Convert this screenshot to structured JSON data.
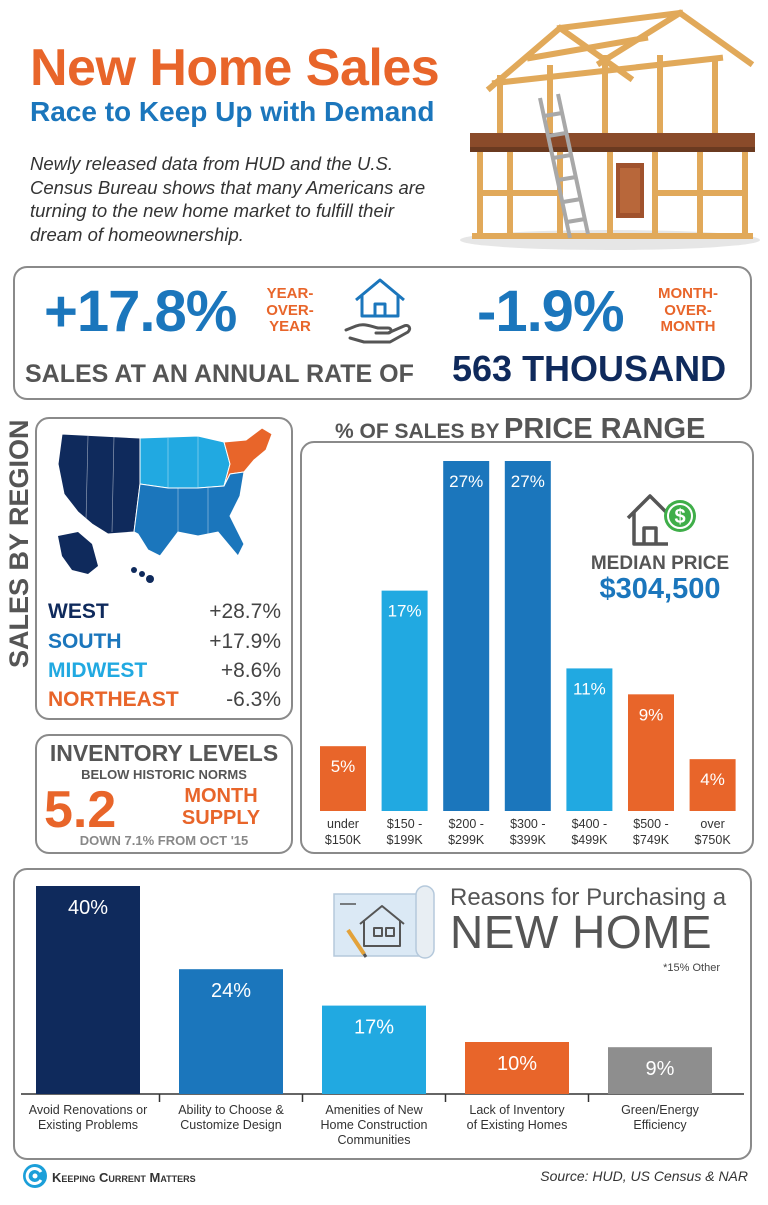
{
  "header": {
    "title": "New Home Sales",
    "subtitle": "Race to Keep Up with Demand",
    "intro": "Newly released data from HUD and the U.S. Census Bureau shows that many Americans are turning to the new home market to fulfill their dream of homeownership."
  },
  "sales_rate": {
    "yoy_value": "+17.8%",
    "yoy_caption_1": "YEAR-",
    "yoy_caption_2": "OVER-",
    "yoy_caption_3": "YEAR",
    "mom_value": "-1.9%",
    "mom_caption_1": "MONTH-",
    "mom_caption_2": "OVER-",
    "mom_caption_3": "MONTH",
    "rate_text": "SALES AT AN ANNUAL RATE OF",
    "rate_value": "563 THOUSAND"
  },
  "regions": {
    "heading": "SALES BY REGION",
    "items": [
      {
        "name": "WEST",
        "value": "+28.7%",
        "color": "#0f2a5c"
      },
      {
        "name": "SOUTH",
        "value": "+17.9%",
        "color": "#1b76bc"
      },
      {
        "name": "MIDWEST",
        "value": "+8.6%",
        "color": "#21a9e1"
      },
      {
        "name": "NORTHEAST",
        "value": "-6.3%",
        "color": "#e8652a"
      }
    ]
  },
  "inventory": {
    "title": "INVENTORY LEVELS",
    "subtitle": "BELOW HISTORIC NORMS",
    "value": "5.2",
    "caption_1": "MONTH",
    "caption_2": "SUPPLY",
    "note": "DOWN 7.1% FROM OCT '15"
  },
  "price": {
    "heading_a": "% OF SALES BY",
    "heading_b": "PRICE RANGE",
    "median_label": "MEDIAN PRICE",
    "median_value": "$304,500"
  },
  "reasons": {
    "title_1": "Reasons for Purchasing a",
    "title_2": "NEW HOME",
    "note": "*15% Other"
  },
  "footer": {
    "logo": "Keeping Current Matters",
    "source": "Source: HUD, US Census & NAR"
  },
  "colors": {
    "orange": "#e8652a",
    "blue": "#1b76bc",
    "light_blue": "#21a9e1",
    "navy": "#0f2a5c",
    "gray": "#8e8e8e"
  },
  "chart_data": [
    {
      "type": "bar",
      "title": "% OF SALES BY PRICE RANGE",
      "categories": [
        [
          "under",
          "$150K"
        ],
        [
          "$150 -",
          "$199K"
        ],
        [
          "$200 -",
          "$299K"
        ],
        [
          "$300 -",
          "$399K"
        ],
        [
          "$400 -",
          "$499K"
        ],
        [
          "$500 -",
          "$749K"
        ],
        [
          "over",
          "$750K"
        ]
      ],
      "values": [
        5,
        17,
        27,
        27,
        11,
        9,
        4
      ],
      "labels": [
        "5%",
        "17%",
        "27%",
        "27%",
        "11%",
        "9%",
        "4%"
      ],
      "colors": [
        "#e8652a",
        "#21a9e1",
        "#1b76bc",
        "#1b76bc",
        "#21a9e1",
        "#e8652a",
        "#e8652a"
      ],
      "ylim": [
        0,
        27
      ]
    },
    {
      "type": "bar",
      "title": "Reasons for Purchasing a NEW HOME",
      "categories": [
        [
          "Avoid Renovations or",
          "Existing Problems"
        ],
        [
          "Ability to Choose &",
          "Customize Design"
        ],
        [
          "Amenities of New",
          "Home Construction",
          "Communities"
        ],
        [
          "Lack of Inventory",
          "of Existing Homes"
        ],
        [
          "Green/Energy",
          "Efficiency"
        ]
      ],
      "values": [
        40,
        24,
        17,
        10,
        9
      ],
      "labels": [
        "40%",
        "24%",
        "17%",
        "10%",
        "9%"
      ],
      "colors": [
        "#0f2a5c",
        "#1b76bc",
        "#21a9e1",
        "#e8652a",
        "#8e8e8e"
      ],
      "ylim": [
        0,
        40
      ]
    }
  ]
}
